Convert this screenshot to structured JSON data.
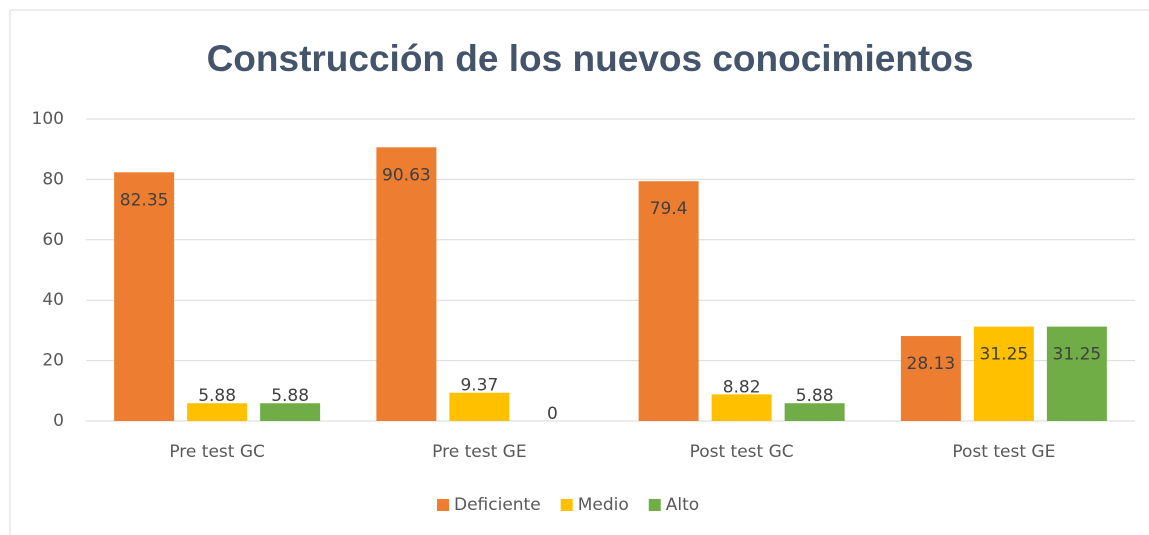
{
  "chart_data": {
    "type": "bar",
    "title": "Construcción de los nuevos conocimientos",
    "categories": [
      "Pre test GC",
      "Pre test GE",
      "Post test GC",
      "Post test GE"
    ],
    "series": [
      {
        "name": "Deficiente",
        "color": "#ed7d31",
        "values": [
          82.35,
          90.63,
          79.4,
          28.13
        ]
      },
      {
        "name": "Medio",
        "color": "#ffc000",
        "values": [
          5.88,
          9.37,
          8.82,
          31.25
        ]
      },
      {
        "name": "Alto",
        "color": "#70ad47",
        "values": [
          5.88,
          0,
          5.88,
          31.25
        ]
      }
    ],
    "ylim": [
      0,
      100
    ],
    "yticks": [
      0,
      20,
      40,
      60,
      80,
      100
    ],
    "grid": true,
    "legend": "bottom"
  }
}
